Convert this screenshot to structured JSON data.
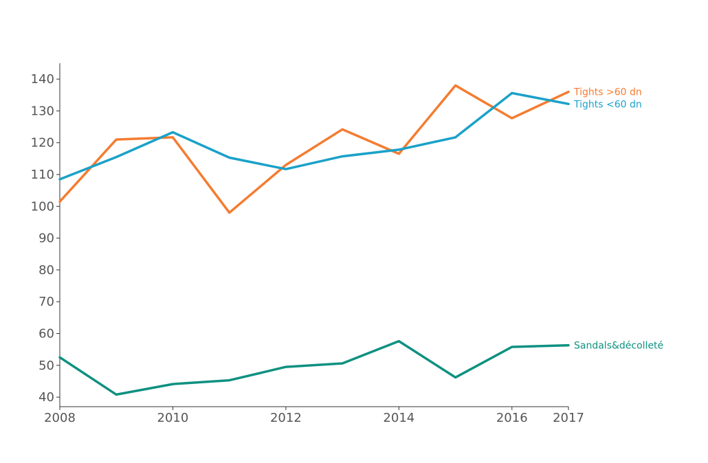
{
  "chart_data": {
    "type": "line",
    "x": [
      2008,
      2009,
      2010,
      2011,
      2012,
      2013,
      2014,
      2015,
      2016,
      2017
    ],
    "x_ticks": [
      2008,
      2010,
      2012,
      2014,
      2016,
      2017
    ],
    "y_ticks": [
      40,
      50,
      60,
      70,
      80,
      90,
      100,
      110,
      120,
      130,
      140
    ],
    "xlim": [
      2008,
      2017
    ],
    "ylim": [
      37,
      145
    ],
    "grid": false,
    "series": [
      {
        "name": "Tights >60 dn",
        "color": "#f47c30",
        "values": [
          101.5,
          121,
          121.7,
          98,
          113,
          124.2,
          116.5,
          138,
          127.7,
          136
        ]
      },
      {
        "name": "Tights <60 dn",
        "color": "#1aa1c9",
        "values": [
          108.5,
          115.5,
          123.3,
          115.3,
          111.7,
          115.7,
          117.8,
          121.7,
          135.6,
          132.2
        ]
      },
      {
        "name": "Sandals&décolleté",
        "color": "#0e9180",
        "values": [
          52.5,
          40.8,
          44.1,
          45.3,
          49.5,
          50.6,
          57.6,
          46.2,
          55.8,
          56.3
        ]
      }
    ],
    "title": "",
    "xlabel": "",
    "ylabel": ""
  }
}
